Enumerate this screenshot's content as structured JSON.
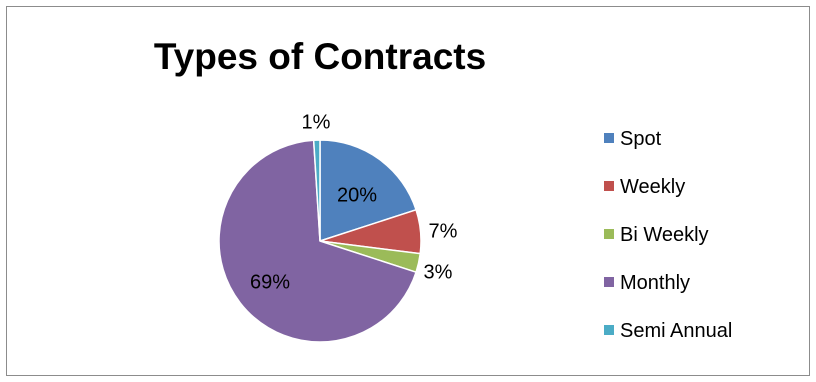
{
  "chart_data": {
    "type": "pie",
    "title": "Types of Contracts",
    "categories": [
      "Spot",
      "Weekly",
      "Bi Weekly",
      "Monthly",
      "Semi Annual"
    ],
    "values": [
      20,
      7,
      3,
      69,
      1
    ],
    "data_labels": [
      "20%",
      "7%",
      "3%",
      "69%",
      "1%"
    ],
    "colors": [
      "#4f81bd",
      "#c0504d",
      "#9bbb59",
      "#8064a2",
      "#4bacc6"
    ],
    "legend_placement": "right",
    "start_angle_deg": 0,
    "direction": "clockwise"
  }
}
